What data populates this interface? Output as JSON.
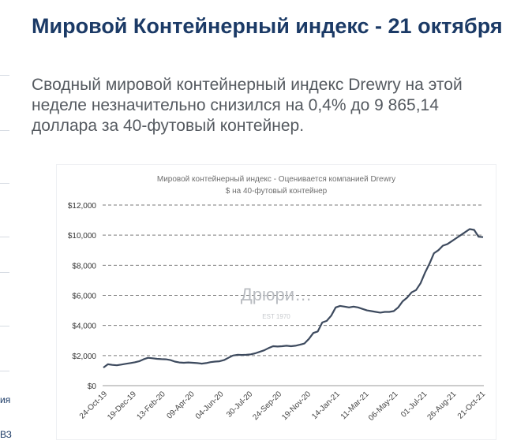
{
  "sidebar": {
    "fragments": [
      "ия",
      "ВЗ"
    ]
  },
  "article": {
    "title": "Мировой Контейнерный индекс - 21 октября",
    "lead": "Сводный мировой контейнерный индекс Drewry на этой неделе незначительно снизился на 0,4% до 9 865,14 доллара за 40-футовый контейнер."
  },
  "chart_data": {
    "type": "line",
    "title": "Мировой контейнерный индекс - Оценивается компанией Drewry",
    "subtitle": "$ на 40-футовый контейнер",
    "watermark": {
      "text": "Дрюри…",
      "subtext": "EST 1970"
    },
    "line_color": "#3d4a5e",
    "grid": true,
    "ylim": [
      0,
      12000
    ],
    "y_ticks": [
      0,
      2000,
      4000,
      6000,
      8000,
      10000,
      12000
    ],
    "y_tick_labels": [
      "$0",
      "$2,000",
      "$4,000",
      "$6,000",
      "$8,000",
      "$10,000",
      "$12,000"
    ],
    "x_tick_labels": [
      "24-Oct-19",
      "19-Dec-19",
      "13-Feb-20",
      "09-Apr-20",
      "04-Jun-20",
      "30-Jul-20",
      "24-Sep-20",
      "19-Nov-20",
      "14-Jan-21",
      "11-Mar-21",
      "06-May-21",
      "01-Jul-21",
      "26-Aug-21",
      "21-Oct-21"
    ],
    "series": [
      {
        "values": [
          1200,
          1420,
          1380,
          1350,
          1400,
          1450,
          1500,
          1550,
          1620,
          1750,
          1850,
          1820,
          1780,
          1760,
          1750,
          1700,
          1600,
          1540,
          1520,
          1540,
          1520,
          1500,
          1460,
          1500,
          1560,
          1600,
          1620,
          1700,
          1850,
          2000,
          2050,
          2040,
          2050,
          2080,
          2150,
          2250,
          2350,
          2500,
          2620,
          2600,
          2620,
          2650,
          2620,
          2650,
          2720,
          2800,
          3100,
          3500,
          3600,
          4200,
          4300,
          4650,
          5200,
          5300,
          5250,
          5200,
          5250,
          5200,
          5100,
          5000,
          4950,
          4900,
          4850,
          4900,
          4900,
          4950,
          5200,
          5600,
          5850,
          6200,
          6350,
          6800,
          7500,
          8100,
          8800,
          9000,
          9300,
          9400,
          9600,
          9800,
          10000,
          10200,
          10400,
          10350,
          9900,
          9865
        ]
      }
    ]
  }
}
